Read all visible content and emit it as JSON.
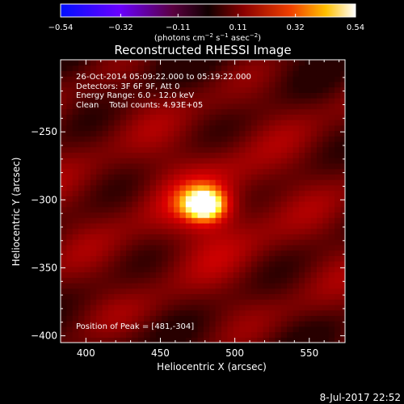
{
  "chart_data": {
    "type": "heatmap",
    "title": "Reconstructed RHESSI Image",
    "xlabel": "Heliocentric X (arcsec)",
    "ylabel": "Heliocentric Y (arcsec)",
    "xlim": [
      383,
      574
    ],
    "ylim": [
      -405,
      -197
    ],
    "x_ticks": [
      400,
      450,
      500,
      550
    ],
    "y_ticks": [
      -250,
      -300,
      -350,
      -400
    ],
    "x_tick_labels": [
      "400",
      "450",
      "500",
      "550"
    ],
    "y_tick_labels": [
      "−250",
      "−300",
      "−350",
      "−400"
    ],
    "colorbar": {
      "range": [
        -0.54,
        0.54
      ],
      "ticks": [
        -0.54,
        -0.32,
        -0.11,
        0.11,
        0.32,
        0.54
      ],
      "tick_labels": [
        "−0.54",
        "−0.32",
        "−0.11",
        "0.11",
        "0.32",
        "0.54"
      ],
      "colormap": "rainbow-fire",
      "unit_text": "(photons cm",
      "unit_exp1": "−2",
      "unit_mid1": " s",
      "unit_exp2": "−1",
      "unit_mid2": " asec",
      "unit_exp3": "−2",
      "unit_end": ")"
    },
    "annotations": [
      "26-Oct-2014 05:09:22.000 to 05:19:22.000",
      "Detectors: 3F 6F 9F, Att 0",
      "Energy Range: 6.0 - 12.0 keV",
      "Clean    Total counts: 4.93E+05"
    ],
    "peak_label": "Position of Peak = [481,-304]",
    "peak": {
      "x": 481,
      "y": -304,
      "value": 0.54
    },
    "background_level": 0.2,
    "colors": {
      "background": "#000000",
      "cbar_low": "#0000ff",
      "cbar_mid_low": "#a000ff",
      "cbar_zero": "#1a0000",
      "cbar_mid_high": "#e02000",
      "cbar_high": "#ffffff"
    }
  },
  "footer": {
    "date": "8-Jul-2017 22:52"
  }
}
